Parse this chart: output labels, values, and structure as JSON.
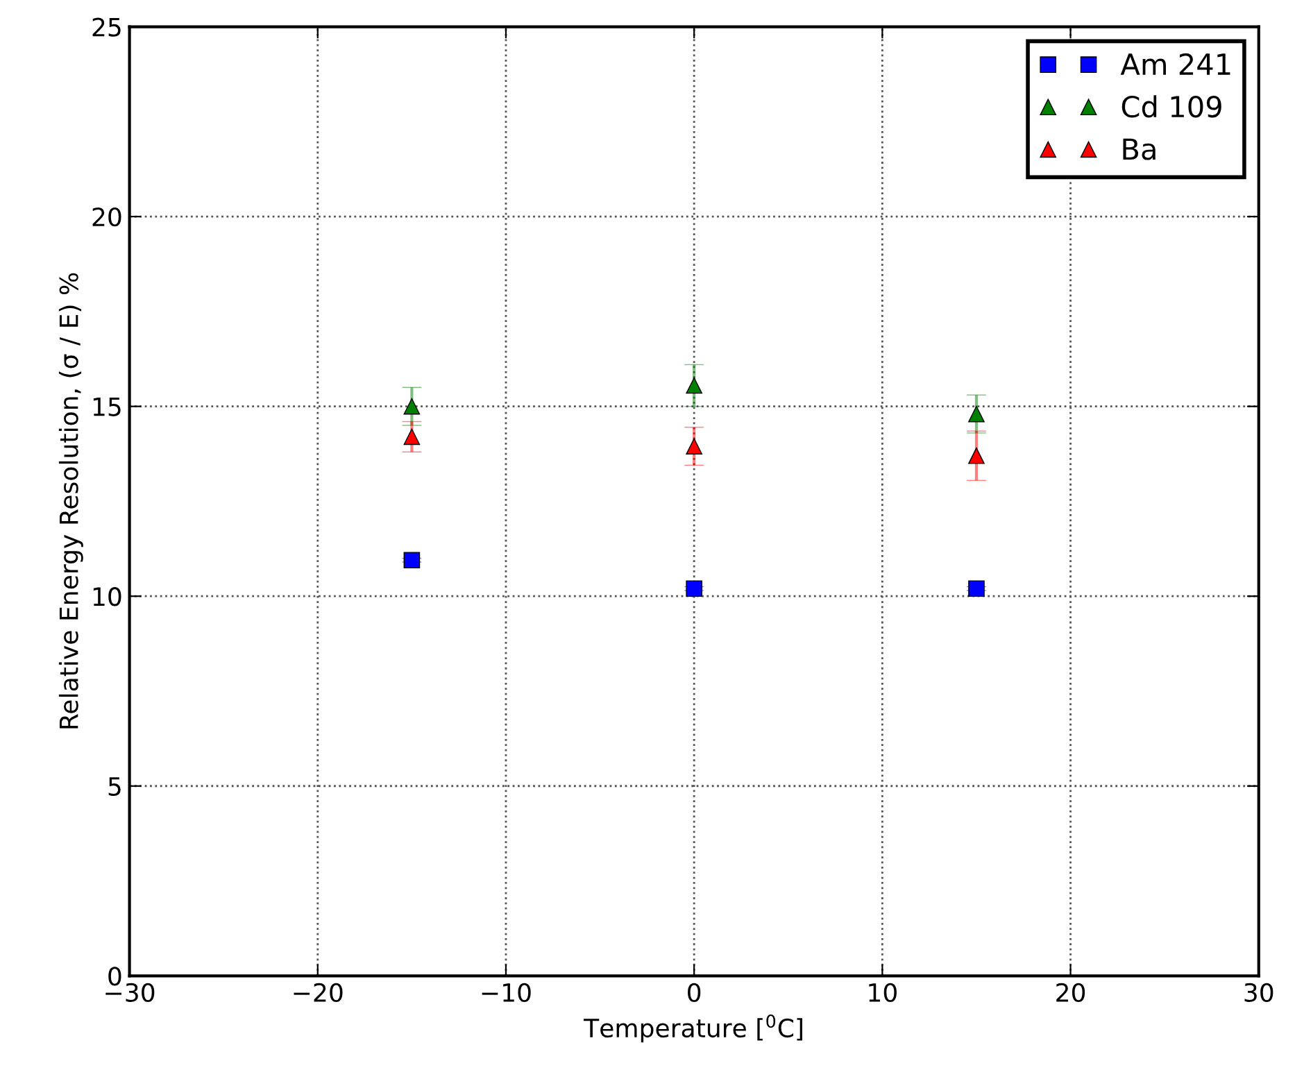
{
  "chart_data": {
    "type": "scatter",
    "xlabel": "Temperature [$^{0}$C]",
    "ylabel": "Relative Energy Resolution, (σ / E) %",
    "x": [
      -15,
      0,
      15
    ],
    "series": [
      {
        "name": "Am 241",
        "color": "#0000ff",
        "marker": "square",
        "values": [
          10.95,
          10.2,
          10.2
        ],
        "errors": [
          0.05,
          0.05,
          0.05
        ]
      },
      {
        "name": "Cd 109",
        "color": "#008000",
        "marker": "triangle",
        "values": [
          15.0,
          15.55,
          14.8
        ],
        "errors": [
          0.5,
          0.55,
          0.5
        ]
      },
      {
        "name": "Ba",
        "color": "#ff0000",
        "marker": "triangle",
        "values": [
          14.2,
          13.95,
          13.7
        ],
        "errors": [
          0.4,
          0.5,
          0.65
        ]
      }
    ],
    "xlim": [
      -30,
      30
    ],
    "xticks": [
      -30,
      -20,
      -10,
      0,
      10,
      20,
      30
    ],
    "ylim": [
      0,
      25
    ],
    "yticks": [
      0,
      5,
      10,
      15,
      20,
      25
    ],
    "grid": true,
    "legend": "top right",
    "line_style": "none"
  }
}
